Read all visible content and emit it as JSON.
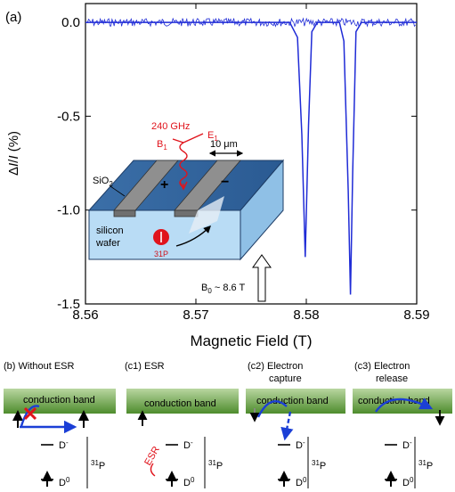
{
  "panel_a": {
    "label": "(a)",
    "ylabel_pre": "Δ",
    "ylabel_i": "I",
    "ylabel_mid": "/",
    "ylabel_i2": "I",
    "ylabel_post": " (%)",
    "xlabel": "Magnetic Field (T)",
    "inset": {
      "freq": "240 GHz",
      "b1": "B",
      "b1_sub": "1",
      "e1": "E",
      "e1_sub": "1",
      "width": "10 μm",
      "sio2": "SiO",
      "sio2_sub": "2",
      "plus": "+",
      "minus": "−",
      "silicon": "silicon",
      "wafer": "wafer",
      "p31": "31P",
      "b0": "B",
      "b0_sub": "0",
      "b0_val": " ~ 8.6 T"
    }
  },
  "chart_data": {
    "type": "line",
    "xlabel": "Magnetic Field (T)",
    "ylabel": "ΔI/I (%)",
    "xlim": [
      8.56,
      8.59
    ],
    "ylim": [
      -1.5,
      0.1
    ],
    "x_ticks": [
      "8.56",
      "8.57",
      "8.58",
      "8.59"
    ],
    "y_ticks": [
      "0.0",
      "-0.5",
      "-1.0",
      "-1.5"
    ],
    "series": [
      {
        "color": "#1f2bd6",
        "x": [
          8.56,
          8.575,
          8.5785,
          8.5792,
          8.5796,
          8.5799,
          8.5802,
          8.5805,
          8.581,
          8.582,
          8.583,
          8.5834,
          8.5838,
          8.584,
          8.5842,
          8.5845,
          8.585,
          8.586,
          8.59
        ],
        "y": [
          0.0,
          0.0,
          0.0,
          -0.08,
          -0.6,
          -1.25,
          -0.55,
          -0.05,
          0.0,
          0.0,
          0.0,
          -0.1,
          -0.9,
          -1.45,
          -0.8,
          -0.05,
          0.0,
          0.0,
          0.0
        ]
      }
    ]
  },
  "panels_bottom": [
    {
      "label": "(b) Without ESR",
      "label2": "",
      "band": "conduction band"
    },
    {
      "label": "(c1) ESR",
      "label2": "",
      "band": "conduction band",
      "esr": "ESR"
    },
    {
      "label": "(c2) Electron",
      "label2": "capture",
      "band": "conduction band"
    },
    {
      "label": "(c3) Electron",
      "label2": "release",
      "band": "conduction band"
    }
  ],
  "levels": {
    "dminus": "D",
    "dminus_sup": "-",
    "d0": "D",
    "d0_sup": "0",
    "p31_sup": "31",
    "p31": "P"
  }
}
